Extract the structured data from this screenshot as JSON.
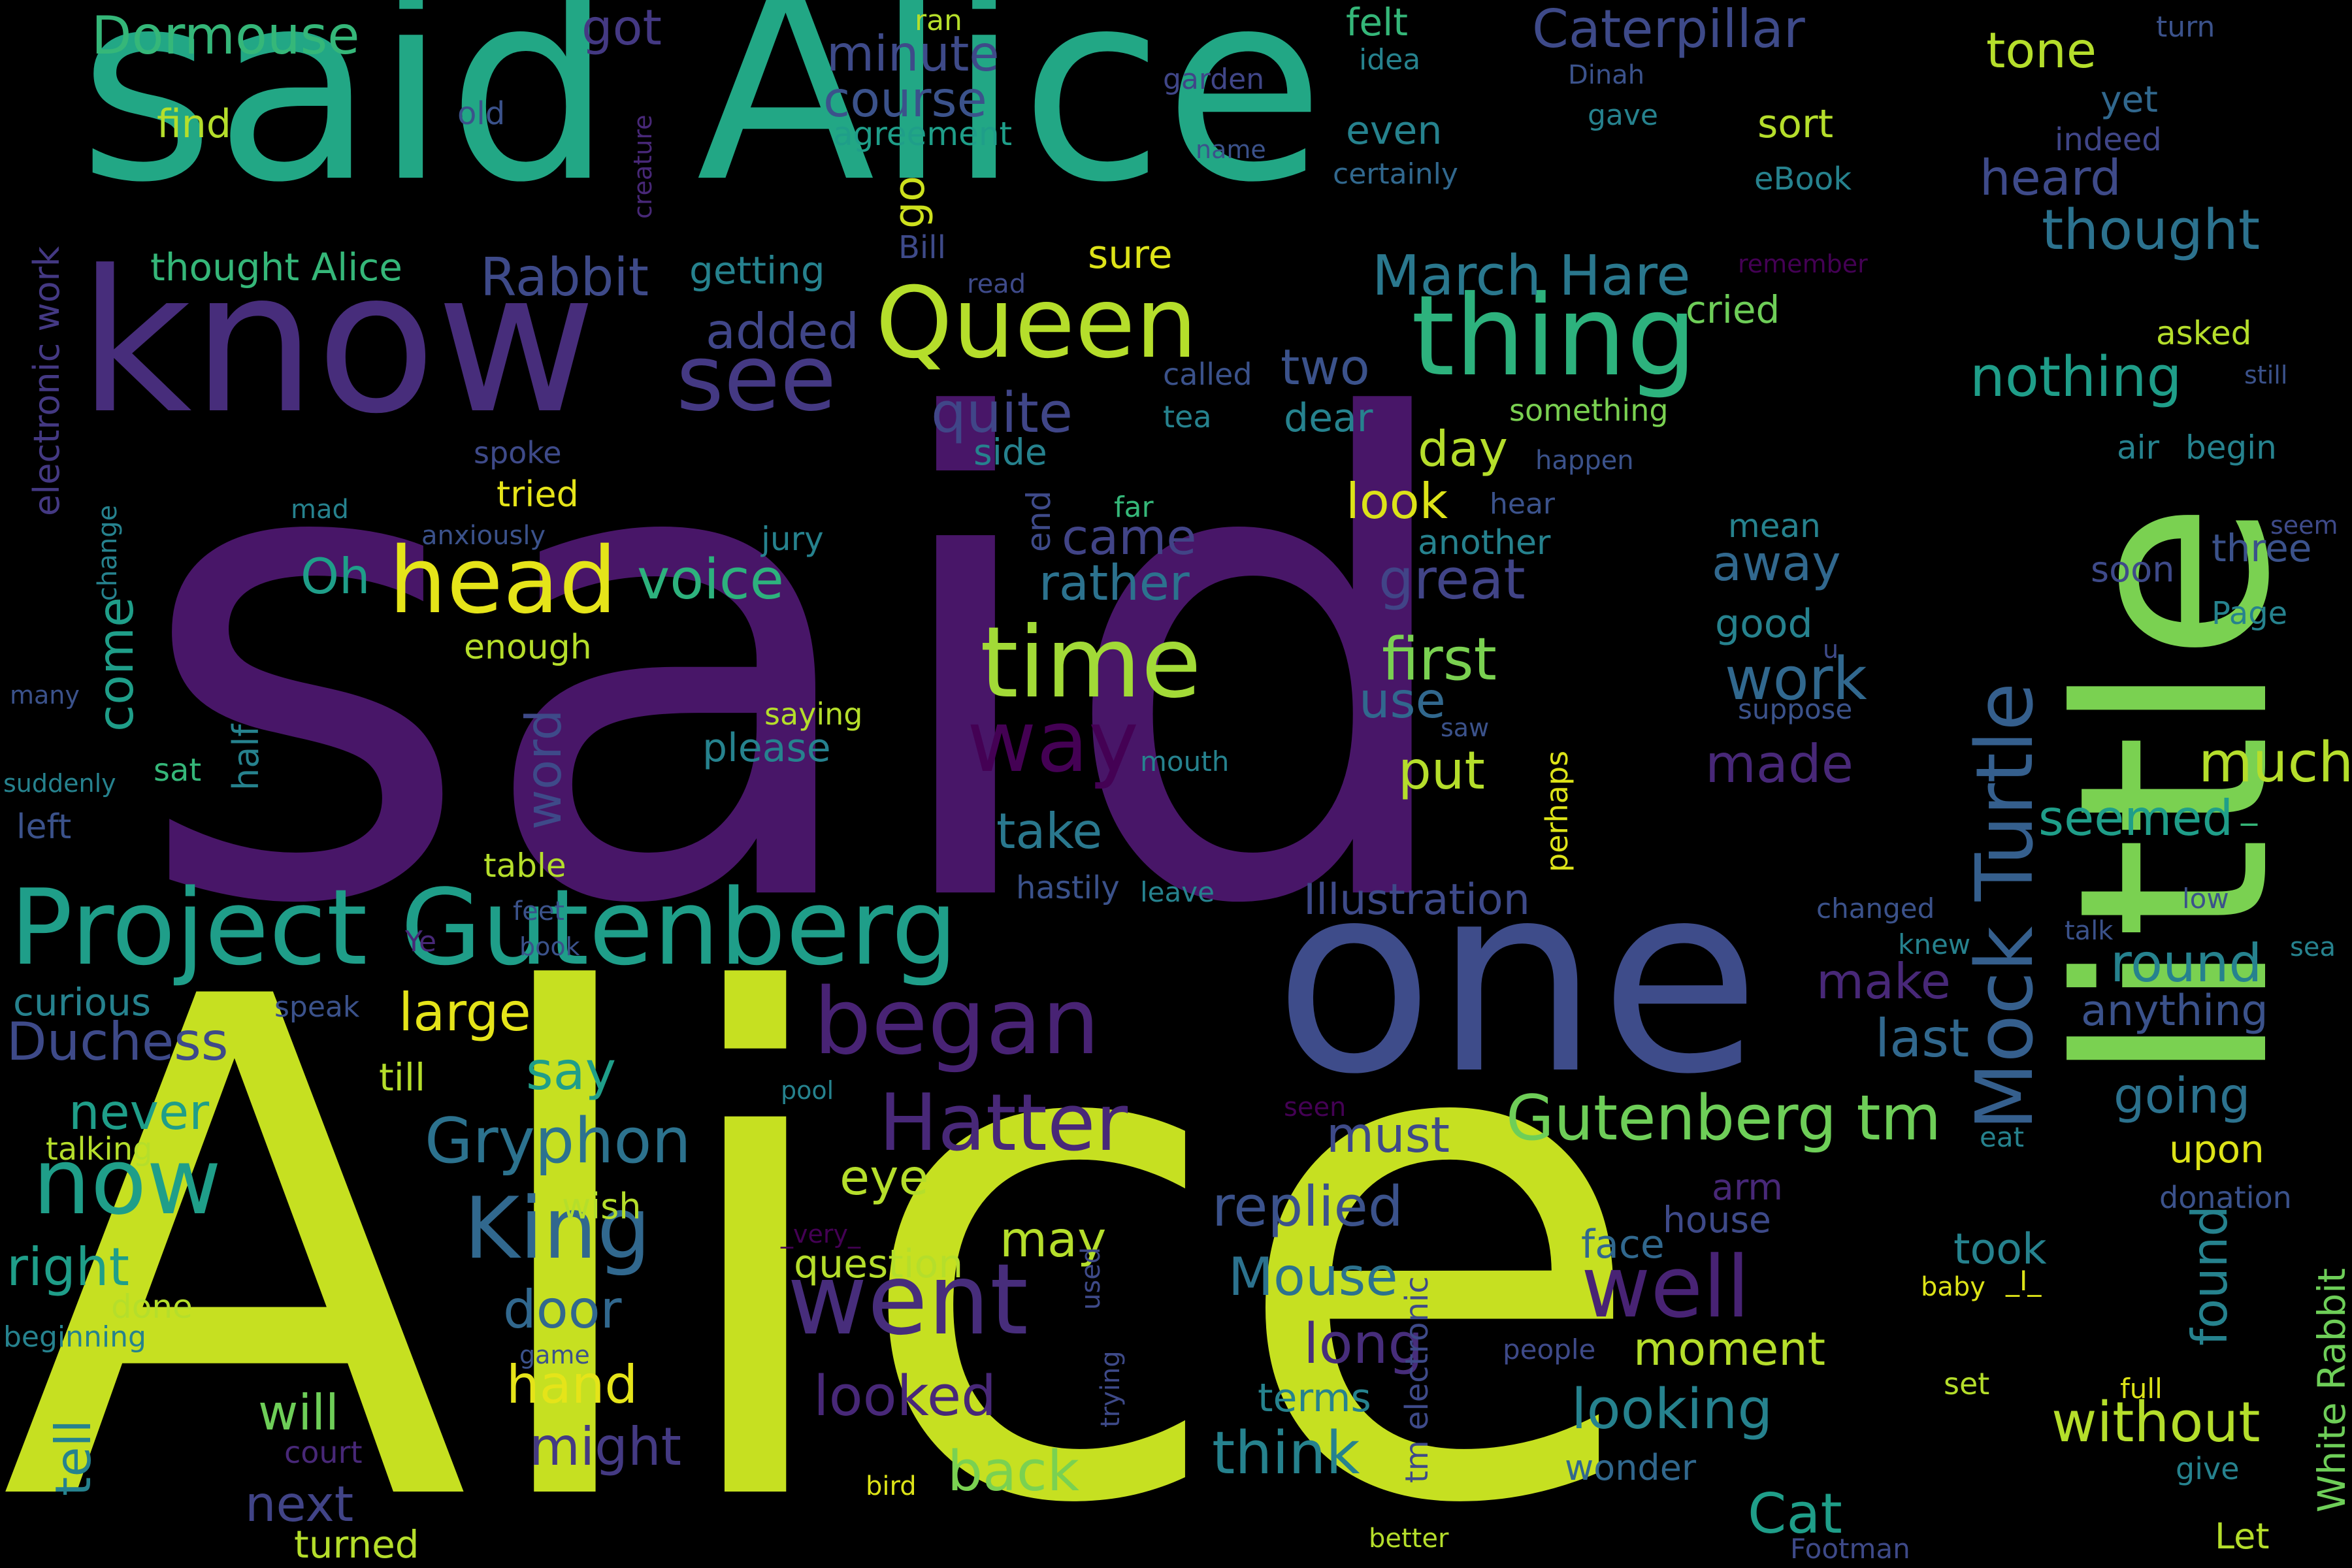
{
  "title": "Word cloud",
  "palette": [
    "#440154",
    "#482878",
    "#3e4a89",
    "#31688e",
    "#26828e",
    "#1f9e89",
    "#35b779",
    "#6ece58",
    "#b5de2b",
    "#fde725"
  ],
  "words": {
    "said_big": "said",
    "alice_big": "Alice",
    "said_alice": "said Alice",
    "little": "little",
    "one": "one",
    "know": "know",
    "thing": "thing",
    "queen": "Queen",
    "project_gutenberg": "Project Gutenberg",
    "time": "time",
    "went": "went",
    "head": "head",
    "began": "began",
    "now": "now",
    "see": "see",
    "way": "way",
    "hatter": "Hatter",
    "well": "well",
    "king": "King",
    "mock_turtle": "Mock Turtle",
    "gutenberg_tm": "Gutenberg tm",
    "march_hare": "March Hare",
    "dormouse": "Dormouse",
    "caterpillar": "Caterpillar",
    "rabbit": "Rabbit",
    "thought_alice": "thought Alice",
    "thought": "thought",
    "nothing": "nothing",
    "gryphon": "Gryphon",
    "duchess": "Duchess",
    "work": "work",
    "first": "first",
    "great": "great",
    "quite": "quite",
    "voice": "voice",
    "replied": "replied",
    "much": "much",
    "seemed": "seemed",
    "round": "round",
    "last": "last",
    "without": "without",
    "looking": "looking",
    "looked": "looked",
    "back": "back",
    "think": "think",
    "might": "might",
    "hand": "hand",
    "door": "door",
    "long": "long",
    "mouse": "Mouse",
    "cat": "Cat",
    "made": "made",
    "put": "put",
    "take": "take",
    "large": "large",
    "say": "say",
    "never": "never",
    "right": "right",
    "must": "must",
    "eye": "eye",
    "may": "may",
    "make": "make",
    "going": "going",
    "away": "away",
    "look": "look",
    "day": "day",
    "came": "came",
    "rather": "rather",
    "added": "added",
    "two": "two",
    "got": "got",
    "minute": "minute",
    "course": "course",
    "tone": "tone",
    "heard": "heard",
    "go": "go",
    "sure": "sure",
    "getting": "getting",
    "cried": "cried",
    "oh": "Oh",
    "come": "come",
    "word": "word",
    "will": "will",
    "next": "next",
    "tell": "tell",
    "illustration": "Illustration",
    "white_rabbit": "White Rabbit",
    "found": "found",
    "anything": "anything",
    "moment": "moment",
    "terms": "terms",
    "took": "took",
    "face": "face",
    "house": "house",
    "arm": "arm",
    "question": "question",
    "please": "please",
    "use": "use",
    "first2": "first",
    "felt": "felt",
    "idea": "idea",
    "ran": "ran",
    "garden": "garden",
    "even": "even",
    "sort": "sort",
    "ebook": "eBook",
    "certainly": "certainly",
    "name": "name",
    "agreement": "agreement",
    "find": "find",
    "old": "old",
    "electronic_work": "electronic work",
    "creature": "creature",
    "dinah": "Dinah",
    "gave": "gave",
    "yet": "yet",
    "indeed": "indeed",
    "turn": "turn",
    "bill": "Bill",
    "read": "read",
    "remember": "remember",
    "asked": "asked",
    "still": "still",
    "called": "called",
    "tea": "tea",
    "dear": "dear",
    "something": "something",
    "spoke": "spoke",
    "tried": "tried",
    "mad": "mad",
    "anxiously": "anxiously",
    "change": "change",
    "jury": "jury",
    "end": "end",
    "side": "side",
    "far": "far",
    "hear": "hear",
    "another": "another",
    "happen": "happen",
    "mean": "mean",
    "good": "good",
    "air": "air",
    "begin": "begin",
    "three": "three",
    "seem": "seem",
    "soon": "soon",
    "page": "Page",
    "enough": "enough",
    "many": "many",
    "half": "half",
    "sat": "sat",
    "suddenly": "suddenly",
    "left": "left",
    "saying": "saying",
    "mouth": "mouth",
    "saw": "saw",
    "u": "u",
    "suppose": "suppose",
    "perhaps": "perhaps",
    "table": "table",
    "feet": "feet",
    "book": "book",
    "hastily": "hastily",
    "leave": "leave",
    "curious": "curious",
    "ye": "Ye",
    "speak": "speak",
    "changed": "changed",
    "low": "low",
    "talk": "talk",
    "knew": "knew",
    "sea": "sea",
    "till": "till",
    "pool": "pool",
    "seen": "seen",
    "eat": "eat",
    "upon": "upon",
    "talking": "talking",
    "wish": "wish",
    "very": "_very_",
    "donation": "donation",
    "done": "done",
    "beginning": "beginning",
    "used": "used",
    "baby": "baby",
    "i_mark": "_I_",
    "game": "game",
    "trying": "trying",
    "people": "people",
    "tm_electronic": "tm electronic",
    "court": "court",
    "set": "set",
    "full": "full",
    "wonder": "wonder",
    "give": "give",
    "bird": "bird",
    "turned": "turned",
    "better": "better",
    "footman": "Footman",
    "let": "Let",
    "dash": "_"
  }
}
